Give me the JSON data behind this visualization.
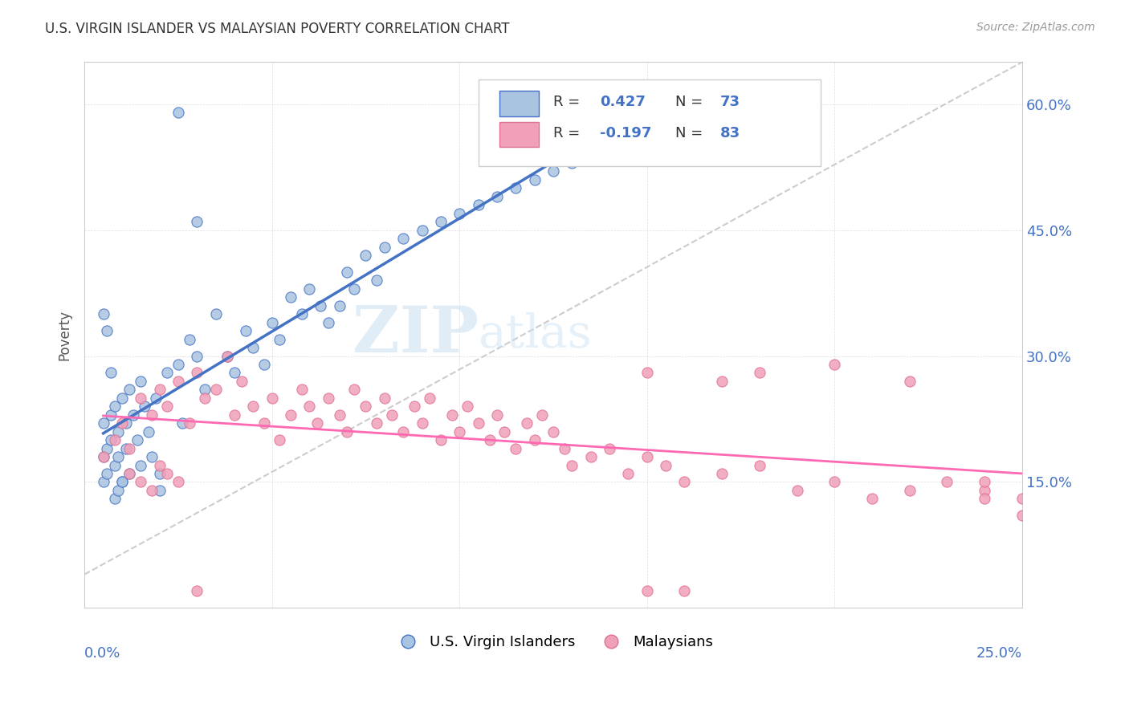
{
  "title": "U.S. VIRGIN ISLANDER VS MALAYSIAN POVERTY CORRELATION CHART",
  "source": "Source: ZipAtlas.com",
  "ylabel": "Poverty",
  "ytick_labels": [
    "15.0%",
    "30.0%",
    "45.0%",
    "60.0%"
  ],
  "ytick_vals": [
    0.15,
    0.3,
    0.45,
    0.6
  ],
  "xlim": [
    0.0,
    0.25
  ],
  "ylim": [
    0.0,
    0.65
  ],
  "color_vi": "#a8c4e0",
  "color_my": "#f0a0b8",
  "color_vi_line": "#4472C4",
  "color_my_line": "#FF69B4",
  "vi_scatter_x": [
    0.005,
    0.005,
    0.005,
    0.006,
    0.006,
    0.007,
    0.007,
    0.008,
    0.008,
    0.009,
    0.009,
    0.01,
    0.01,
    0.011,
    0.011,
    0.012,
    0.012,
    0.013,
    0.014,
    0.015,
    0.015,
    0.016,
    0.017,
    0.018,
    0.019,
    0.02,
    0.022,
    0.025,
    0.026,
    0.028,
    0.03,
    0.032,
    0.035,
    0.038,
    0.04,
    0.043,
    0.045,
    0.048,
    0.05,
    0.052,
    0.055,
    0.058,
    0.06,
    0.063,
    0.065,
    0.068,
    0.07,
    0.072,
    0.075,
    0.078,
    0.08,
    0.085,
    0.09,
    0.095,
    0.1,
    0.105,
    0.11,
    0.115,
    0.12,
    0.125,
    0.13,
    0.135,
    0.14,
    0.145,
    0.005,
    0.006,
    0.007,
    0.008,
    0.009,
    0.01,
    0.02,
    0.025,
    0.03
  ],
  "vi_scatter_y": [
    0.18,
    0.15,
    0.22,
    0.19,
    0.16,
    0.23,
    0.2,
    0.17,
    0.24,
    0.21,
    0.18,
    0.25,
    0.15,
    0.22,
    0.19,
    0.26,
    0.16,
    0.23,
    0.2,
    0.17,
    0.27,
    0.24,
    0.21,
    0.18,
    0.25,
    0.16,
    0.28,
    0.29,
    0.22,
    0.32,
    0.3,
    0.26,
    0.35,
    0.3,
    0.28,
    0.33,
    0.31,
    0.29,
    0.34,
    0.32,
    0.37,
    0.35,
    0.38,
    0.36,
    0.34,
    0.36,
    0.4,
    0.38,
    0.42,
    0.39,
    0.43,
    0.44,
    0.45,
    0.46,
    0.47,
    0.48,
    0.49,
    0.5,
    0.51,
    0.52,
    0.53,
    0.54,
    0.55,
    0.57,
    0.35,
    0.33,
    0.28,
    0.13,
    0.14,
    0.15,
    0.14,
    0.59,
    0.46
  ],
  "my_scatter_x": [
    0.005,
    0.008,
    0.01,
    0.012,
    0.015,
    0.018,
    0.02,
    0.022,
    0.025,
    0.028,
    0.03,
    0.032,
    0.035,
    0.038,
    0.04,
    0.042,
    0.045,
    0.048,
    0.05,
    0.052,
    0.055,
    0.058,
    0.06,
    0.062,
    0.065,
    0.068,
    0.07,
    0.072,
    0.075,
    0.078,
    0.08,
    0.082,
    0.085,
    0.088,
    0.09,
    0.092,
    0.095,
    0.098,
    0.1,
    0.102,
    0.105,
    0.108,
    0.11,
    0.112,
    0.115,
    0.118,
    0.12,
    0.122,
    0.125,
    0.128,
    0.13,
    0.135,
    0.14,
    0.145,
    0.15,
    0.155,
    0.16,
    0.17,
    0.18,
    0.19,
    0.2,
    0.21,
    0.22,
    0.17,
    0.15,
    0.18,
    0.2,
    0.22,
    0.24,
    0.15,
    0.16,
    0.24,
    0.25,
    0.23,
    0.24,
    0.25,
    0.015,
    0.02,
    0.025,
    0.012,
    0.018,
    0.022,
    0.03
  ],
  "my_scatter_y": [
    0.18,
    0.2,
    0.22,
    0.19,
    0.25,
    0.23,
    0.26,
    0.24,
    0.27,
    0.22,
    0.28,
    0.25,
    0.26,
    0.3,
    0.23,
    0.27,
    0.24,
    0.22,
    0.25,
    0.2,
    0.23,
    0.26,
    0.24,
    0.22,
    0.25,
    0.23,
    0.21,
    0.26,
    0.24,
    0.22,
    0.25,
    0.23,
    0.21,
    0.24,
    0.22,
    0.25,
    0.2,
    0.23,
    0.21,
    0.24,
    0.22,
    0.2,
    0.23,
    0.21,
    0.19,
    0.22,
    0.2,
    0.23,
    0.21,
    0.19,
    0.17,
    0.18,
    0.19,
    0.16,
    0.18,
    0.17,
    0.15,
    0.16,
    0.17,
    0.14,
    0.15,
    0.13,
    0.14,
    0.27,
    0.28,
    0.28,
    0.29,
    0.27,
    0.14,
    0.02,
    0.02,
    0.13,
    0.11,
    0.15,
    0.15,
    0.13,
    0.15,
    0.17,
    0.15,
    0.16,
    0.14,
    0.16,
    0.02
  ]
}
